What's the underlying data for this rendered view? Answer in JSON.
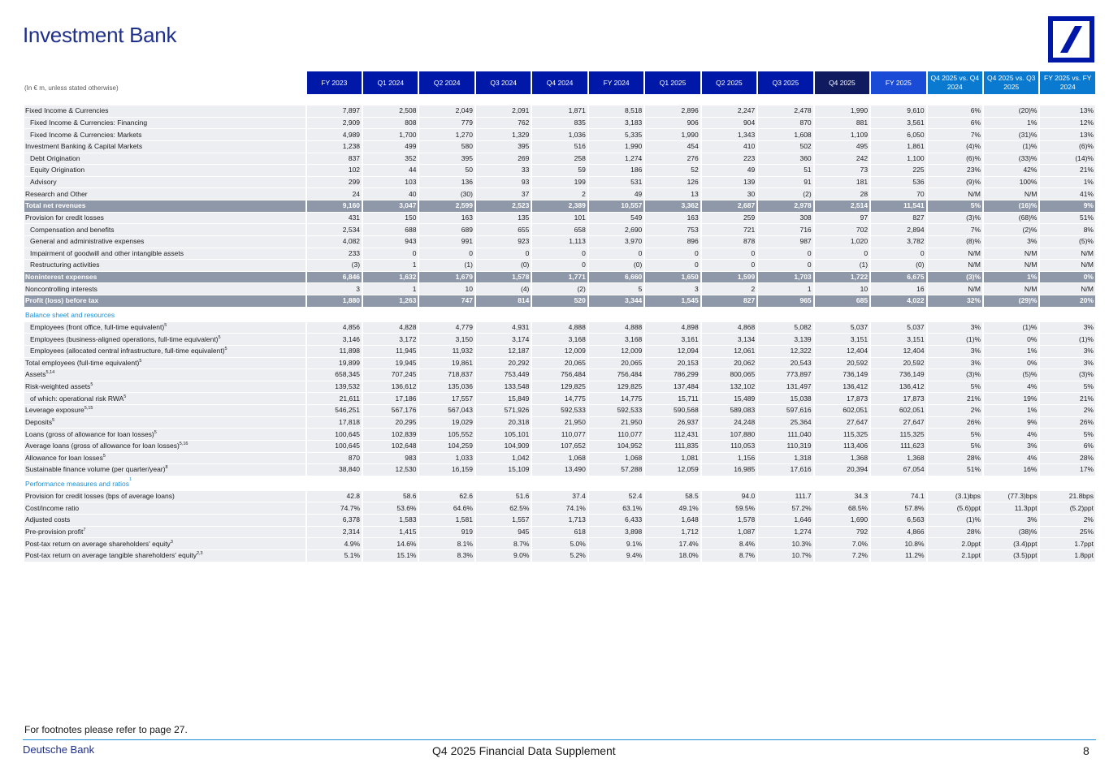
{
  "page": {
    "title": "Investment Bank",
    "units_note": "(In € m, unless stated otherwise)",
    "footnote_text": "For footnotes please refer to page 27.",
    "brand": "Deutsche Bank",
    "document": "Q4 2025 Financial Data Supplement",
    "page_number": "8"
  },
  "colors": {
    "brand_blue": "#0018a8",
    "dark_navy": "#0f1b5e",
    "accent_blue": "#1a8fd6",
    "total_row": "#8f98a8",
    "row_bg": "#eceef1"
  },
  "columns": [
    {
      "label": "FY 2023",
      "style": "std"
    },
    {
      "label": "Q1 2024",
      "style": "std"
    },
    {
      "label": "Q2 2024",
      "style": "std"
    },
    {
      "label": "Q3 2024",
      "style": "std"
    },
    {
      "label": "Q4 2024",
      "style": "std"
    },
    {
      "label": "FY 2024",
      "style": "std"
    },
    {
      "label": "Q1 2025",
      "style": "std"
    },
    {
      "label": "Q2 2025",
      "style": "std"
    },
    {
      "label": "Q3 2025",
      "style": "std"
    },
    {
      "label": "Q4 2025",
      "style": "dark"
    },
    {
      "label": "FY 2025",
      "style": "mid"
    },
    {
      "label": "Q4 2025 vs. Q4 2024",
      "style": "hl"
    },
    {
      "label": "Q4 2025 vs. Q3 2025",
      "style": "hl"
    },
    {
      "label": "FY 2025 vs. FY 2024",
      "style": "hl"
    }
  ],
  "rows": [
    {
      "type": "row",
      "label": "Fixed Income & Currencies",
      "values": [
        "7,897",
        "2,508",
        "2,049",
        "2,091",
        "1,871",
        "8,518",
        "2,896",
        "2,247",
        "2,478",
        "1,990",
        "9,610",
        "6%",
        "(20)%",
        "13%"
      ]
    },
    {
      "type": "row",
      "indent": true,
      "label": "Fixed Income & Currencies: Financing",
      "values": [
        "2,909",
        "808",
        "779",
        "762",
        "835",
        "3,183",
        "906",
        "904",
        "870",
        "881",
        "3,561",
        "6%",
        "1%",
        "12%"
      ]
    },
    {
      "type": "row",
      "indent": true,
      "label": "Fixed Income & Currencies: Markets",
      "values": [
        "4,989",
        "1,700",
        "1,270",
        "1,329",
        "1,036",
        "5,335",
        "1,990",
        "1,343",
        "1,608",
        "1,109",
        "6,050",
        "7%",
        "(31)%",
        "13%"
      ]
    },
    {
      "type": "row",
      "label": "Investment Banking & Capital Markets",
      "values": [
        "1,238",
        "499",
        "580",
        "395",
        "516",
        "1,990",
        "454",
        "410",
        "502",
        "495",
        "1,861",
        "(4)%",
        "(1)%",
        "(6)%"
      ]
    },
    {
      "type": "row",
      "indent": true,
      "label": "Debt Origination",
      "values": [
        "837",
        "352",
        "395",
        "269",
        "258",
        "1,274",
        "276",
        "223",
        "360",
        "242",
        "1,100",
        "(6)%",
        "(33)%",
        "(14)%"
      ]
    },
    {
      "type": "row",
      "indent": true,
      "label": "Equity Origination",
      "values": [
        "102",
        "44",
        "50",
        "33",
        "59",
        "186",
        "52",
        "49",
        "51",
        "73",
        "225",
        "23%",
        "42%",
        "21%"
      ]
    },
    {
      "type": "row",
      "indent": true,
      "label": "Advisory",
      "values": [
        "299",
        "103",
        "136",
        "93",
        "199",
        "531",
        "126",
        "139",
        "91",
        "181",
        "536",
        "(9)%",
        "100%",
        "1%"
      ]
    },
    {
      "type": "row",
      "label": "Research and Other",
      "values": [
        "24",
        "40",
        "(30)",
        "37",
        "2",
        "49",
        "13",
        "30",
        "(2)",
        "28",
        "70",
        "N/M",
        "N/M",
        "41%"
      ]
    },
    {
      "type": "total",
      "label": "Total net revenues",
      "values": [
        "9,160",
        "3,047",
        "2,599",
        "2,523",
        "2,389",
        "10,557",
        "3,362",
        "2,687",
        "2,978",
        "2,514",
        "11,541",
        "5%",
        "(16)%",
        "9%"
      ]
    },
    {
      "type": "row",
      "label": "Provision for credit losses",
      "values": [
        "431",
        "150",
        "163",
        "135",
        "101",
        "549",
        "163",
        "259",
        "308",
        "97",
        "827",
        "(3)%",
        "(68)%",
        "51%"
      ]
    },
    {
      "type": "row",
      "indent": true,
      "label": "Compensation and benefits",
      "values": [
        "2,534",
        "688",
        "689",
        "655",
        "658",
        "2,690",
        "753",
        "721",
        "716",
        "702",
        "2,894",
        "7%",
        "(2)%",
        "8%"
      ]
    },
    {
      "type": "row",
      "indent": true,
      "label": "General and administrative expenses",
      "values": [
        "4,082",
        "943",
        "991",
        "923",
        "1,113",
        "3,970",
        "896",
        "878",
        "987",
        "1,020",
        "3,782",
        "(8)%",
        "3%",
        "(5)%"
      ]
    },
    {
      "type": "row",
      "indent": true,
      "label": "Impairment of goodwill and other intangible assets",
      "values": [
        "233",
        "0",
        "0",
        "0",
        "0",
        "0",
        "0",
        "0",
        "0",
        "0",
        "0",
        "N/M",
        "N/M",
        "N/M"
      ]
    },
    {
      "type": "row",
      "indent": true,
      "label": "Restructuring activities",
      "values": [
        "(3)",
        "1",
        "(1)",
        "(0)",
        "0",
        "(0)",
        "0",
        "0",
        "0",
        "(1)",
        "(0)",
        "N/M",
        "N/M",
        "N/M"
      ]
    },
    {
      "type": "total",
      "label": "Noninterest expenses",
      "values": [
        "6,846",
        "1,632",
        "1,679",
        "1,578",
        "1,771",
        "6,660",
        "1,650",
        "1,599",
        "1,703",
        "1,722",
        "6,675",
        "(3)%",
        "1%",
        "0%"
      ]
    },
    {
      "type": "row",
      "label": "Noncontrolling interests",
      "values": [
        "3",
        "1",
        "10",
        "(4)",
        "(2)",
        "5",
        "3",
        "2",
        "1",
        "10",
        "16",
        "N/M",
        "N/M",
        "N/M"
      ]
    },
    {
      "type": "total",
      "label": "Profit (loss) before tax",
      "values": [
        "1,880",
        "1,263",
        "747",
        "814",
        "520",
        "3,344",
        "1,545",
        "827",
        "965",
        "685",
        "4,022",
        "32%",
        "(29)%",
        "20%"
      ]
    },
    {
      "type": "section",
      "label": "Balance sheet and resources"
    },
    {
      "type": "row",
      "indent": true,
      "label": "Employees (front office, full-time equivalent)",
      "sup": "5",
      "values": [
        "4,856",
        "4,828",
        "4,779",
        "4,931",
        "4,888",
        "4,888",
        "4,898",
        "4,868",
        "5,082",
        "5,037",
        "5,037",
        "3%",
        "(1)%",
        "3%"
      ]
    },
    {
      "type": "row",
      "indent": true,
      "label": "Employees (business-aligned operations, full-time equivalent)",
      "sup": "5",
      "values": [
        "3,146",
        "3,172",
        "3,150",
        "3,174",
        "3,168",
        "3,168",
        "3,161",
        "3,134",
        "3,139",
        "3,151",
        "3,151",
        "(1)%",
        "0%",
        "(1)%"
      ]
    },
    {
      "type": "row",
      "indent": true,
      "label": "Employees (allocated central infrastructure, full-time equivalent)",
      "sup": "5",
      "values": [
        "11,898",
        "11,945",
        "11,932",
        "12,187",
        "12,009",
        "12,009",
        "12,094",
        "12,061",
        "12,322",
        "12,404",
        "12,404",
        "3%",
        "1%",
        "3%"
      ]
    },
    {
      "type": "row",
      "label": "Total employees (full-time equivalent)",
      "sup": "5",
      "values": [
        "19,899",
        "19,945",
        "19,861",
        "20,292",
        "20,065",
        "20,065",
        "20,153",
        "20,062",
        "20,543",
        "20,592",
        "20,592",
        "3%",
        "0%",
        "3%"
      ]
    },
    {
      "type": "row",
      "label": "Assets",
      "sup": "5,14",
      "values": [
        "658,345",
        "707,245",
        "718,837",
        "753,449",
        "756,484",
        "756,484",
        "786,299",
        "800,065",
        "773,897",
        "736,149",
        "736,149",
        "(3)%",
        "(5)%",
        "(3)%"
      ]
    },
    {
      "type": "row",
      "label": "Risk-weighted assets",
      "sup": "5",
      "values": [
        "139,532",
        "136,612",
        "135,036",
        "133,548",
        "129,825",
        "129,825",
        "137,484",
        "132,102",
        "131,497",
        "136,412",
        "136,412",
        "5%",
        "4%",
        "5%"
      ]
    },
    {
      "type": "row",
      "indent": true,
      "label": "of which: operational risk RWA",
      "sup": "5",
      "values": [
        "21,611",
        "17,186",
        "17,557",
        "15,849",
        "14,775",
        "14,775",
        "15,711",
        "15,489",
        "15,038",
        "17,873",
        "17,873",
        "21%",
        "19%",
        "21%"
      ]
    },
    {
      "type": "row",
      "label": "Leverage exposure",
      "sup": "5,15",
      "values": [
        "546,251",
        "567,176",
        "567,043",
        "571,926",
        "592,533",
        "592,533",
        "590,568",
        "589,083",
        "597,616",
        "602,051",
        "602,051",
        "2%",
        "1%",
        "2%"
      ]
    },
    {
      "type": "row",
      "label": "Deposits",
      "sup": "5",
      "values": [
        "17,818",
        "20,295",
        "19,029",
        "20,318",
        "21,950",
        "21,950",
        "26,937",
        "24,248",
        "25,364",
        "27,647",
        "27,647",
        "26%",
        "9%",
        "26%"
      ]
    },
    {
      "type": "row",
      "label": "Loans (gross of allowance for loan losses)",
      "sup": "5",
      "values": [
        "100,645",
        "102,839",
        "105,552",
        "105,101",
        "110,077",
        "110,077",
        "112,431",
        "107,880",
        "111,040",
        "115,325",
        "115,325",
        "5%",
        "4%",
        "5%"
      ]
    },
    {
      "type": "row",
      "label": "Average loans (gross of allowance for loan losses)",
      "sup": "5,16",
      "values": [
        "100,645",
        "102,648",
        "104,259",
        "104,909",
        "107,652",
        "104,952",
        "111,835",
        "110,053",
        "110,319",
        "113,406",
        "111,623",
        "5%",
        "3%",
        "6%"
      ]
    },
    {
      "type": "row",
      "label": "Allowance for loan losses",
      "sup": "5",
      "values": [
        "870",
        "983",
        "1,033",
        "1,042",
        "1,068",
        "1,068",
        "1,081",
        "1,156",
        "1,318",
        "1,368",
        "1,368",
        "28%",
        "4%",
        "28%"
      ]
    },
    {
      "type": "row",
      "label": "Sustainable finance volume (per quarter/year)",
      "sup": "8",
      "values": [
        "38,840",
        "12,530",
        "16,159",
        "15,109",
        "13,490",
        "57,288",
        "12,059",
        "16,985",
        "17,616",
        "20,394",
        "67,054",
        "51%",
        "16%",
        "17%"
      ]
    },
    {
      "type": "section",
      "label": "Performance measures and ratios",
      "sup": "1"
    },
    {
      "type": "row",
      "label": "Provision for credit losses (bps of average loans)",
      "values": [
        "42.8",
        "58.6",
        "62.6",
        "51.6",
        "37.4",
        "52.4",
        "58.5",
        "94.0",
        "111.7",
        "34.3",
        "74.1",
        "(3.1)bps",
        "(77.3)bps",
        "21.8bps"
      ]
    },
    {
      "type": "row",
      "label": "Cost/income ratio",
      "values": [
        "74.7%",
        "53.6%",
        "64.6%",
        "62.5%",
        "74.1%",
        "63.1%",
        "49.1%",
        "59.5%",
        "57.2%",
        "68.5%",
        "57.8%",
        "(5.6)ppt",
        "11.3ppt",
        "(5.2)ppt"
      ]
    },
    {
      "type": "row",
      "label": "Adjusted costs",
      "values": [
        "6,378",
        "1,583",
        "1,581",
        "1,557",
        "1,713",
        "6,433",
        "1,648",
        "1,578",
        "1,646",
        "1,690",
        "6,563",
        "(1)%",
        "3%",
        "2%"
      ]
    },
    {
      "type": "row",
      "label": "Pre-provision profit",
      "sup": "7",
      "values": [
        "2,314",
        "1,415",
        "919",
        "945",
        "618",
        "3,898",
        "1,712",
        "1,087",
        "1,274",
        "792",
        "4,866",
        "28%",
        "(38)%",
        "25%"
      ]
    },
    {
      "type": "row",
      "label": "Post-tax return on average shareholders' equity",
      "sup": "3",
      "values": [
        "4.9%",
        "14.6%",
        "8.1%",
        "8.7%",
        "5.0%",
        "9.1%",
        "17.4%",
        "8.4%",
        "10.3%",
        "7.0%",
        "10.8%",
        "2.0ppt",
        "(3.4)ppt",
        "1.7ppt"
      ]
    },
    {
      "type": "row",
      "label": "Post-tax return on average tangible shareholders' equity",
      "sup": "2,3",
      "values": [
        "5.1%",
        "15.1%",
        "8.3%",
        "9.0%",
        "5.2%",
        "9.4%",
        "18.0%",
        "8.7%",
        "10.7%",
        "7.2%",
        "11.2%",
        "2.1ppt",
        "(3.5)ppt",
        "1.8ppt"
      ]
    }
  ]
}
